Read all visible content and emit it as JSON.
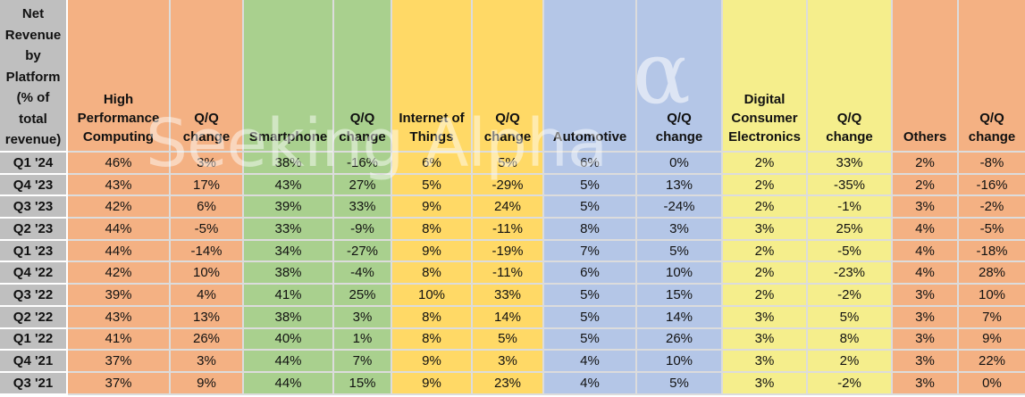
{
  "watermark": {
    "text": "Seeking Alpha",
    "alpha_symbol": "α"
  },
  "colors": {
    "header_gray": "#BFBFBF",
    "hpc_orange": "#F4B183",
    "smartphone_green": "#A9D08E",
    "iot_gold": "#FFD966",
    "automotive_blue": "#B4C6E7",
    "dce_pale_yellow": "#F5EE8C",
    "grid_border": "#DCDCDC",
    "text": "#111111"
  },
  "chart_data": {
    "type": "table",
    "title": "Net Revenue by Platform (% of total revenue)",
    "corner_label_display": "Net\nRevenue\nby\nPlatform\n(% of\ntotal\nrevenue)",
    "columns": [
      {
        "key": "hpc",
        "label": "High\nPerformance\nComputing"
      },
      {
        "key": "hpc-qq",
        "label": "Q/Q\nchange"
      },
      {
        "key": "smartphone",
        "label": "Smartphone"
      },
      {
        "key": "smartphone-qq",
        "label": "Q/Q\nchange"
      },
      {
        "key": "iot",
        "label": "Internet of\nThings"
      },
      {
        "key": "iot-qq",
        "label": "Q/Q\nchange"
      },
      {
        "key": "automotive",
        "label": "Automotive"
      },
      {
        "key": "automotive-qq",
        "label": "Q/Q\nchange"
      },
      {
        "key": "dce",
        "label": "Digital\nConsumer\nElectronics"
      },
      {
        "key": "dce-qq",
        "label": "Q/Q\nchange"
      },
      {
        "key": "others",
        "label": "Others"
      },
      {
        "key": "others-qq",
        "label": "Q/Q\nchange"
      }
    ],
    "rows": [
      {
        "quarter": "Q1 '24",
        "values": [
          "46%",
          "3%",
          "38%",
          "-16%",
          "6%",
          "5%",
          "6%",
          "0%",
          "2%",
          "33%",
          "2%",
          "-8%"
        ]
      },
      {
        "quarter": "Q4 '23",
        "values": [
          "43%",
          "17%",
          "43%",
          "27%",
          "5%",
          "-29%",
          "5%",
          "13%",
          "2%",
          "-35%",
          "2%",
          "-16%"
        ]
      },
      {
        "quarter": "Q3 '23",
        "values": [
          "42%",
          "6%",
          "39%",
          "33%",
          "9%",
          "24%",
          "5%",
          "-24%",
          "2%",
          "-1%",
          "3%",
          "-2%"
        ]
      },
      {
        "quarter": "Q2 '23",
        "values": [
          "44%",
          "-5%",
          "33%",
          "-9%",
          "8%",
          "-11%",
          "8%",
          "3%",
          "3%",
          "25%",
          "4%",
          "-5%"
        ]
      },
      {
        "quarter": "Q1 '23",
        "values": [
          "44%",
          "-14%",
          "34%",
          "-27%",
          "9%",
          "-19%",
          "7%",
          "5%",
          "2%",
          "-5%",
          "4%",
          "-18%"
        ]
      },
      {
        "quarter": "Q4 '22",
        "values": [
          "42%",
          "10%",
          "38%",
          "-4%",
          "8%",
          "-11%",
          "6%",
          "10%",
          "2%",
          "-23%",
          "4%",
          "28%"
        ]
      },
      {
        "quarter": "Q3 '22",
        "values": [
          "39%",
          "4%",
          "41%",
          "25%",
          "10%",
          "33%",
          "5%",
          "15%",
          "2%",
          "-2%",
          "3%",
          "10%"
        ]
      },
      {
        "quarter": "Q2 '22",
        "values": [
          "43%",
          "13%",
          "38%",
          "3%",
          "8%",
          "14%",
          "5%",
          "14%",
          "3%",
          "5%",
          "3%",
          "7%"
        ]
      },
      {
        "quarter": "Q1 '22",
        "values": [
          "41%",
          "26%",
          "40%",
          "1%",
          "8%",
          "5%",
          "5%",
          "26%",
          "3%",
          "8%",
          "3%",
          "9%"
        ]
      },
      {
        "quarter": "Q4 '21",
        "values": [
          "37%",
          "3%",
          "44%",
          "7%",
          "9%",
          "3%",
          "4%",
          "10%",
          "3%",
          "2%",
          "3%",
          "22%"
        ]
      },
      {
        "quarter": "Q3 '21",
        "values": [
          "37%",
          "9%",
          "44%",
          "15%",
          "9%",
          "23%",
          "4%",
          "5%",
          "3%",
          "-2%",
          "3%",
          "0%"
        ]
      }
    ]
  }
}
